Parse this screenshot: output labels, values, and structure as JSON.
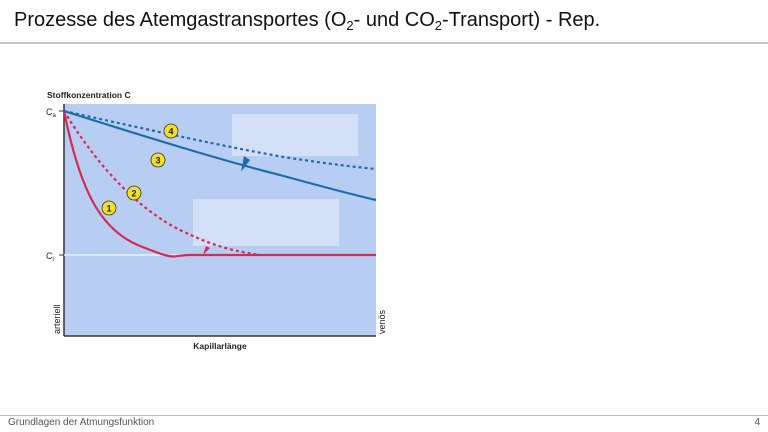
{
  "slide": {
    "title": {
      "part1": "Prozesse des Atemgastransportes  (O",
      "sub1": "2",
      "part2": "- und CO",
      "sub2": "2",
      "part3": "-Transport)  -  Rep."
    },
    "footer": "Grundlagen der Atmungsfunktion",
    "page_number": "4"
  },
  "diagram": {
    "y_axis_label": "Stoffkonzentration C",
    "x_axis_label": "Kapillarlänge",
    "ca_label": "C",
    "ca_sub": "a",
    "ci_label": "C",
    "ci_sub": "i",
    "left_label": "arteriell",
    "right_label": "venös",
    "markers": [
      "1",
      "2",
      "3",
      "4"
    ],
    "colors": {
      "background": "#b8cdf2",
      "red": "#d42a55",
      "blue": "#1f6aa8",
      "marker_fill": "#f3df28"
    }
  }
}
